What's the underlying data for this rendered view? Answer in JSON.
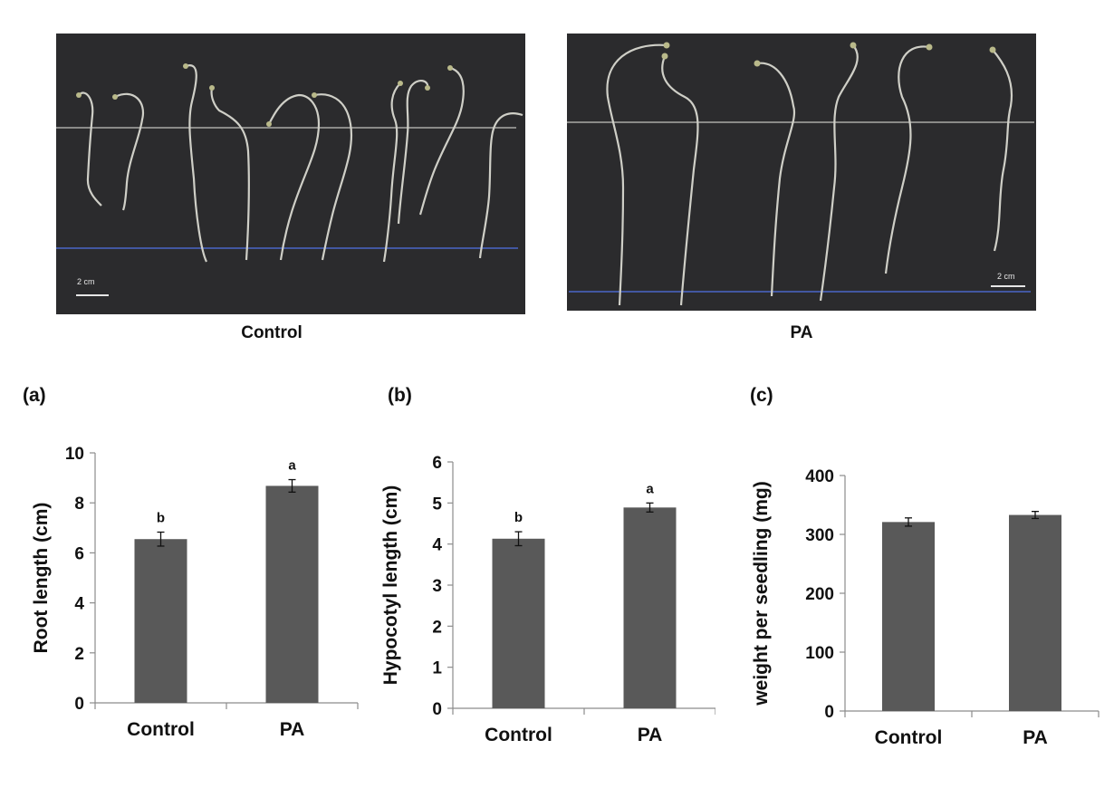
{
  "photos": {
    "control": {
      "caption": "Control",
      "scale_label": "2 cm"
    },
    "pa": {
      "caption": "PA",
      "scale_label": "2 cm"
    }
  },
  "colors": {
    "bar": "#595959",
    "photo_bg": "#2b2b2d",
    "reference_line": "#4a66c8",
    "seedling": "#cfcfc7"
  },
  "chart_data": [
    {
      "panel": "(a)",
      "type": "bar",
      "categories": [
        "Control",
        "PA"
      ],
      "values": [
        6.55,
        8.68
      ],
      "errors": [
        0.28,
        0.25
      ],
      "significance": [
        "b",
        "a"
      ],
      "ylabel": "Root length  (cm)",
      "ylim": [
        0,
        10
      ],
      "yticks": [
        0,
        2,
        4,
        6,
        8,
        10
      ]
    },
    {
      "panel": "(b)",
      "type": "bar",
      "categories": [
        "Control",
        "PA"
      ],
      "values": [
        4.13,
        4.89
      ],
      "errors": [
        0.17,
        0.11
      ],
      "significance": [
        "b",
        "a"
      ],
      "ylabel": "Hypocotyl length (cm)",
      "ylim": [
        0,
        6
      ],
      "yticks": [
        0,
        1,
        2,
        3,
        4,
        5,
        6
      ]
    },
    {
      "panel": "(c)",
      "type": "bar",
      "categories": [
        "Control",
        "PA"
      ],
      "values": [
        321,
        333
      ],
      "errors": [
        7,
        6
      ],
      "significance": [
        "",
        ""
      ],
      "ylabel": "weight per seedling (mg)",
      "ylim": [
        0,
        400
      ],
      "yticks": [
        0,
        100,
        200,
        300,
        400
      ]
    }
  ]
}
